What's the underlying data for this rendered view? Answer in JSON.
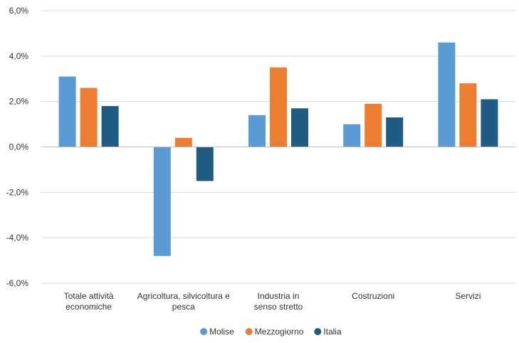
{
  "chart_data": {
    "type": "bar",
    "categories": [
      [
        "Totale attività",
        "economiche"
      ],
      [
        "Agricoltura, silvicoltura e",
        "pesca"
      ],
      [
        "Industria in",
        "senso stretto"
      ],
      [
        "Costruzioni"
      ],
      [
        "Servizi"
      ]
    ],
    "series": [
      {
        "name": "Molise",
        "color": "#5b9bd5",
        "values": [
          3.1,
          -4.8,
          1.4,
          1.0,
          4.6
        ]
      },
      {
        "name": "Mezzogiorno",
        "color": "#ed7d31",
        "values": [
          2.6,
          0.4,
          3.5,
          1.9,
          2.8
        ]
      },
      {
        "name": "Italia",
        "color": "#1f5b82",
        "values": [
          1.8,
          -1.5,
          1.7,
          1.3,
          2.1
        ]
      }
    ],
    "ylim": [
      -6,
      6
    ],
    "yticks": [
      6,
      4,
      2,
      0,
      -2,
      -4,
      -6
    ],
    "ytick_labels": [
      "6,0%",
      "4,0%",
      "2,0%",
      "0,0%",
      "-2,0%",
      "-4,0%",
      "-6,0%"
    ],
    "grid": true,
    "legend_position": "bottom"
  }
}
